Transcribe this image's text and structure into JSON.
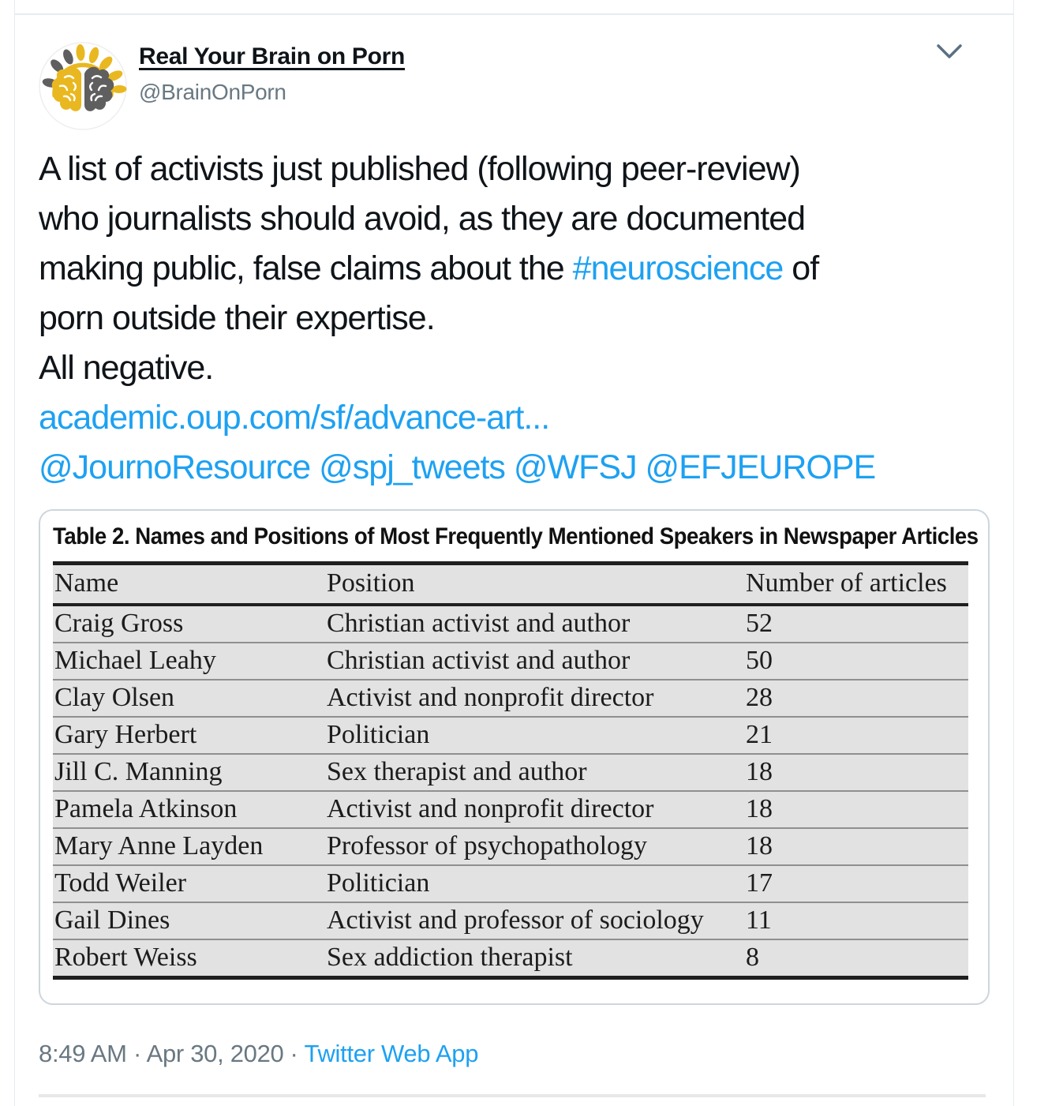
{
  "colors": {
    "link_blue": "#1da1f2",
    "text_black": "#0f1419",
    "muted_gray": "#697882",
    "table_row_bg": "#e2e2e2",
    "card_border": "#ccd6dd",
    "brand_yellow": "#e9b820",
    "brand_gray": "#5f5f5f"
  },
  "tweet": {
    "display_name": "Real Your Brain on Porn",
    "handle": "@BrainOnPorn",
    "avatar_alt": "brain-logo",
    "caret_icon": "chevron-down",
    "text_full": "A list of activists just published (following peer-review) who journalists should avoid, as they are documented making public, false claims about the #neuroscience of porn outside their expertise.\nAll negative.\nacademic.oup.com/sf/advance-art...\n@JournoResource @spj_tweets @WFSJ @EFJEUROPE",
    "text_parts": [
      {
        "type": "text",
        "value": "A list of activists just published (following peer-review)"
      },
      {
        "type": "break"
      },
      {
        "type": "text",
        "value": "who journalists should avoid, as they are documented"
      },
      {
        "type": "break"
      },
      {
        "type": "text",
        "value": "making public, false claims about the "
      },
      {
        "type": "link",
        "value": "#neuroscience"
      },
      {
        "type": "text",
        "value": " of"
      },
      {
        "type": "break"
      },
      {
        "type": "text",
        "value": "porn outside their expertise."
      },
      {
        "type": "break"
      },
      {
        "type": "text",
        "value": "All negative."
      },
      {
        "type": "break"
      },
      {
        "type": "link",
        "value": "academic.oup.com/sf/advance-art..."
      },
      {
        "type": "break"
      },
      {
        "type": "link",
        "value": "@JournoResource"
      },
      {
        "type": "text",
        "value": " "
      },
      {
        "type": "link",
        "value": "@spj_tweets"
      },
      {
        "type": "text",
        "value": " "
      },
      {
        "type": "link",
        "value": "@WFSJ"
      },
      {
        "type": "text",
        "value": " "
      },
      {
        "type": "link",
        "value": "@EFJEUROPE"
      }
    ],
    "timestamp": {
      "time_date": "8:49 AM · Apr 30, 2020",
      "separator": "·",
      "source": "Twitter Web App"
    }
  },
  "table_card": {
    "title": "Table 2. Names and Positions of Most Frequently Mentioned Speakers in Newspaper Articles",
    "columns": [
      "Name",
      "Position",
      "Number of articles"
    ],
    "rows": [
      [
        "Craig Gross",
        "Christian activist and author",
        "52"
      ],
      [
        "Michael Leahy",
        "Christian activist and author",
        "50"
      ],
      [
        "Clay Olsen",
        "Activist and nonprofit director",
        "28"
      ],
      [
        "Gary Herbert",
        "Politician",
        "21"
      ],
      [
        "Jill C. Manning",
        "Sex therapist and author",
        "18"
      ],
      [
        "Pamela Atkinson",
        "Activist and nonprofit director",
        "18"
      ],
      [
        "Mary Anne Layden",
        "Professor of psychopathology",
        "18"
      ],
      [
        "Todd Weiler",
        "Politician",
        "17"
      ],
      [
        "Gail Dines",
        "Activist and professor of sociology",
        "11"
      ],
      [
        "Robert Weiss",
        "Sex addiction therapist",
        "8"
      ]
    ]
  }
}
